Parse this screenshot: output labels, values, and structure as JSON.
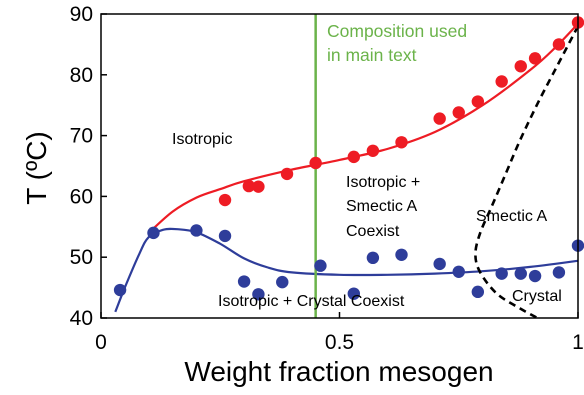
{
  "chart_data": {
    "type": "scatter",
    "xlabel": "Weight fraction mesogen",
    "ylabel": "T (ºC)",
    "xlim": [
      0,
      1
    ],
    "ylim": [
      40,
      90
    ],
    "x_ticks": [
      0,
      0.5,
      1
    ],
    "x_tick_labels": [
      "0",
      "0.5",
      "1"
    ],
    "y_ticks": [
      40,
      50,
      60,
      70,
      80,
      90
    ],
    "y_tick_labels": [
      "40",
      "50",
      "60",
      "70",
      "80",
      "90"
    ],
    "grid": false,
    "colors": {
      "red": "#ee1c24",
      "blue": "#2e3d9a",
      "green": "#6bb34a",
      "black": "#000000"
    },
    "series": [
      {
        "kind": "points",
        "color": "red",
        "points": [
          [
            0.26,
            59.4
          ],
          [
            0.31,
            61.7
          ],
          [
            0.33,
            61.6
          ],
          [
            0.39,
            63.7
          ],
          [
            0.45,
            65.5
          ],
          [
            0.53,
            66.5
          ],
          [
            0.57,
            67.5
          ],
          [
            0.63,
            68.9
          ],
          [
            0.71,
            72.8
          ],
          [
            0.75,
            73.8
          ],
          [
            0.79,
            75.6
          ],
          [
            0.84,
            78.9
          ],
          [
            0.88,
            81.4
          ],
          [
            0.91,
            82.7
          ],
          [
            0.96,
            85.0
          ],
          [
            1.0,
            88.6
          ]
        ]
      },
      {
        "kind": "points",
        "color": "blue",
        "points": [
          [
            0.04,
            44.6
          ],
          [
            0.11,
            54.0
          ],
          [
            0.2,
            54.4
          ],
          [
            0.26,
            53.5
          ],
          [
            0.3,
            46.0
          ],
          [
            0.33,
            43.9
          ],
          [
            0.38,
            45.9
          ],
          [
            0.46,
            48.6
          ],
          [
            0.53,
            44.0
          ],
          [
            0.57,
            49.9
          ],
          [
            0.63,
            50.4
          ],
          [
            0.71,
            48.9
          ],
          [
            0.75,
            47.6
          ],
          [
            0.79,
            44.3
          ],
          [
            0.84,
            47.3
          ],
          [
            0.88,
            47.3
          ],
          [
            0.91,
            46.9
          ],
          [
            0.96,
            47.5
          ],
          [
            1.0,
            51.9
          ]
        ]
      },
      {
        "kind": "curve",
        "color": "red",
        "points": [
          [
            0.1,
            54.0
          ],
          [
            0.15,
            57.5
          ],
          [
            0.2,
            59.8
          ],
          [
            0.25,
            61.2
          ],
          [
            0.3,
            62.5
          ],
          [
            0.4,
            64.4
          ],
          [
            0.5,
            66.0
          ],
          [
            0.6,
            67.8
          ],
          [
            0.7,
            70.6
          ],
          [
            0.8,
            75.0
          ],
          [
            0.9,
            80.8
          ],
          [
            0.95,
            84.3
          ],
          [
            1.0,
            88.4
          ]
        ]
      },
      {
        "kind": "curve",
        "color": "blue",
        "points": [
          [
            0.03,
            41.0
          ],
          [
            0.05,
            45.0
          ],
          [
            0.08,
            50.5
          ],
          [
            0.1,
            53.3
          ],
          [
            0.13,
            54.5
          ],
          [
            0.16,
            54.6
          ],
          [
            0.2,
            54.1
          ],
          [
            0.25,
            52.2
          ],
          [
            0.3,
            49.8
          ],
          [
            0.35,
            48.3
          ],
          [
            0.4,
            47.5
          ],
          [
            0.5,
            47.1
          ],
          [
            0.6,
            47.1
          ],
          [
            0.7,
            47.3
          ],
          [
            0.8,
            47.7
          ],
          [
            0.9,
            48.4
          ],
          [
            1.0,
            49.4
          ]
        ]
      },
      {
        "kind": "dashed",
        "color": "black",
        "points": [
          [
            1.0,
            88.0
          ],
          [
            0.96,
            82.0
          ],
          [
            0.92,
            76.0
          ],
          [
            0.88,
            69.5
          ],
          [
            0.85,
            64.0
          ],
          [
            0.82,
            58.5
          ],
          [
            0.795,
            54.0
          ],
          [
            0.785,
            50.5
          ],
          [
            0.795,
            47.5
          ],
          [
            0.83,
            44.0
          ],
          [
            0.88,
            41.5
          ],
          [
            0.92,
            39.8
          ]
        ]
      },
      {
        "kind": "vline",
        "color": "green",
        "x": 0.45
      }
    ],
    "annotations": {
      "isotropic": "Isotropic",
      "isotropic_smectic_1": "Isotropic +",
      "isotropic_smectic_2": "Smectic A",
      "isotropic_smectic_3": "Coexist",
      "smectic_a": "Smectic A",
      "isotropic_crystal": "Isotropic + Crystal Coexist",
      "crystal": "Crystal",
      "composition_1": "Composition used",
      "composition_2": "in main text"
    }
  }
}
